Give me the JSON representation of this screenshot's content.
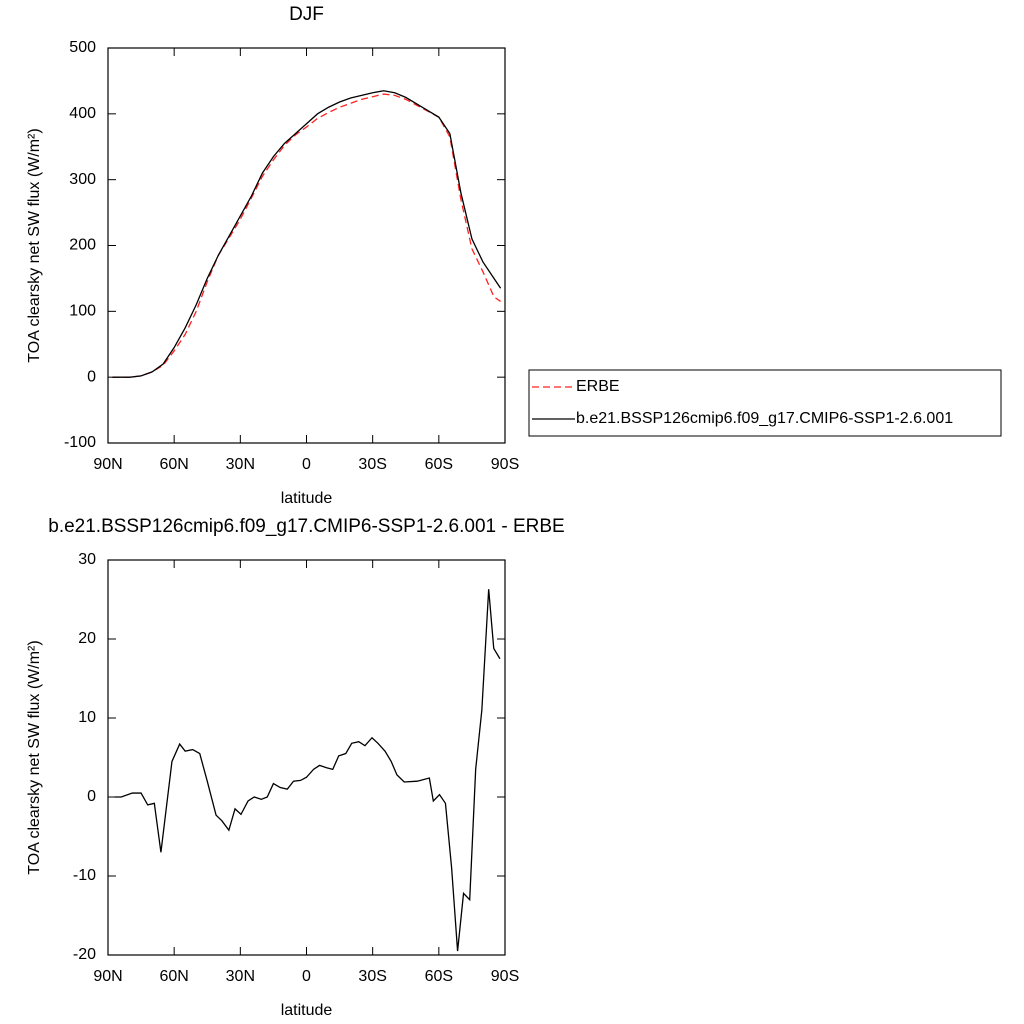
{
  "chart_data": [
    {
      "type": "line",
      "title": "DJF",
      "xlabel": "latitude",
      "ylabel": "TOA clearsky net SW flux (W/m²)",
      "xlim": [
        90,
        -90
      ],
      "xticks": [
        {
          "value": 90,
          "label": "90N"
        },
        {
          "value": 60,
          "label": "60N"
        },
        {
          "value": 30,
          "label": "30N"
        },
        0,
        {
          "value": -30,
          "label": "30S"
        },
        {
          "value": -60,
          "label": "60S"
        },
        {
          "value": -90,
          "label": "90S"
        }
      ],
      "ylim": [
        -100,
        500
      ],
      "yticks": [
        -100,
        0,
        100,
        200,
        300,
        400,
        500
      ],
      "legend": "right",
      "x": [
        88,
        85,
        80,
        75,
        70,
        65,
        60,
        55,
        50,
        45,
        40,
        35,
        30,
        25,
        20,
        15,
        10,
        5,
        0,
        -5,
        -10,
        -15,
        -20,
        -25,
        -30,
        -35,
        -40,
        -45,
        -50,
        -55,
        -60,
        -65,
        -70,
        -75,
        -80,
        -85,
        -88
      ],
      "series": [
        {
          "name": "ERBE",
          "color": "#ff2020",
          "style": "dashed",
          "values": [
            0,
            0,
            0,
            2,
            8,
            18,
            40,
            65,
            100,
            145,
            185,
            212,
            240,
            272,
            305,
            330,
            352,
            368,
            380,
            393,
            402,
            410,
            416,
            422,
            426,
            430,
            428,
            422,
            413,
            404,
            395,
            365,
            270,
            195,
            160,
            122,
            115
          ]
        },
        {
          "name": "b.e21.BSSP126cmip6.f09_g17.CMIP6-SSP1-2.6.001",
          "color": "#000000",
          "style": "solid",
          "values": [
            0,
            0,
            0,
            2,
            8,
            20,
            45,
            75,
            110,
            150,
            185,
            215,
            245,
            275,
            310,
            335,
            355,
            370,
            385,
            400,
            410,
            418,
            424,
            428,
            432,
            435,
            432,
            425,
            415,
            405,
            395,
            370,
            280,
            210,
            175,
            150,
            135
          ]
        }
      ]
    },
    {
      "type": "line",
      "title": "b.e21.BSSP126cmip6.f09_g17.CMIP6-SSP1-2.6.001 - ERBE",
      "xlabel": "latitude",
      "ylabel": "TOA clearsky net SW flux (W/m²)",
      "xlim": [
        90,
        -90
      ],
      "xticks": [
        {
          "value": 90,
          "label": "90N"
        },
        {
          "value": 60,
          "label": "60N"
        },
        {
          "value": 30,
          "label": "30N"
        },
        0,
        {
          "value": -30,
          "label": "30S"
        },
        {
          "value": -60,
          "label": "60S"
        },
        {
          "value": -90,
          "label": "90S"
        }
      ],
      "ylim": [
        -20,
        30
      ],
      "yticks": [
        -20,
        -10,
        0,
        10,
        20,
        30
      ],
      "x": [
        87,
        84,
        79,
        75,
        72,
        69,
        66,
        61,
        57.5,
        55,
        51.6,
        48.4,
        45,
        41,
        38.4,
        35.2,
        32.4,
        29.7,
        26.5,
        23.7,
        20.5,
        17.8,
        15,
        11.9,
        8.7,
        5.9,
        2.7,
        0,
        -3.2,
        -5.9,
        -9.1,
        -11.9,
        -14.6,
        -17.8,
        -20.5,
        -23.7,
        -26.5,
        -29.7,
        -32.4,
        -35.6,
        -38.4,
        -41,
        -44.3,
        -50.2,
        -55.7,
        -57.5,
        -60.3,
        -63,
        -65.8,
        -68.5,
        -71.2,
        -74,
        -76.7,
        -79.5,
        -82.6,
        -84.9,
        -87.7
      ],
      "series": [
        {
          "name": "b.e21.BSSP126cmip6.f09_g17.CMIP6-SSP1-2.6.001 - ERBE",
          "color": "#000000",
          "style": "solid",
          "values": [
            0,
            0,
            0.5,
            0.5,
            -1,
            -0.8,
            -7,
            4.5,
            6.7,
            5.8,
            6,
            5.5,
            2,
            -2.3,
            -3,
            -4.2,
            -1.5,
            -2.2,
            -0.5,
            0,
            -0.3,
            0,
            1.7,
            1.2,
            1,
            2,
            2.1,
            2.5,
            3.5,
            4,
            3.7,
            3.5,
            5.2,
            5.5,
            6.8,
            7,
            6.5,
            7.5,
            6.8,
            5.8,
            4.5,
            2.8,
            1.9,
            2,
            2.4,
            -0.5,
            0.3,
            -0.8,
            -9,
            -19.5,
            -12.2,
            -13,
            3.5,
            11,
            26.3,
            18.8,
            17.5
          ]
        }
      ]
    }
  ]
}
